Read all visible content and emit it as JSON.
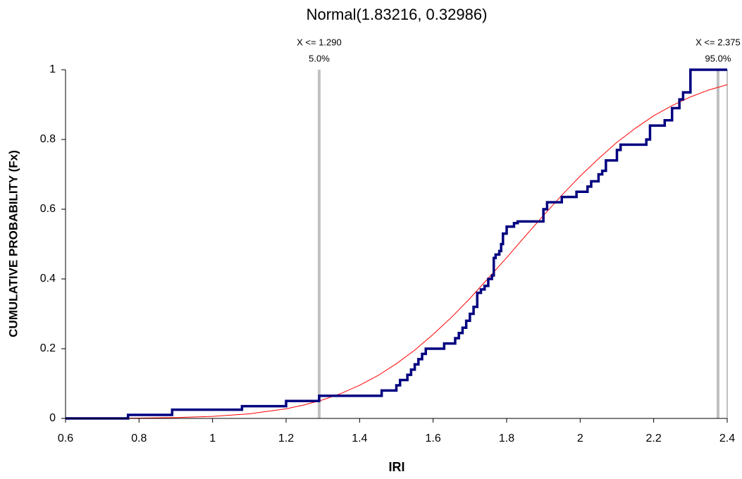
{
  "chart_data": {
    "type": "line",
    "title": "Normal(1.83216, 0.32986)",
    "x_label": "IRI",
    "y_label": "CUMULATIVE PROBABILITY (Fx)",
    "xlim": [
      0.6,
      2.4
    ],
    "ylim": [
      0,
      1
    ],
    "xticks": [
      0.6,
      0.8,
      1,
      1.2,
      1.4,
      1.6,
      1.8,
      2,
      2.2,
      2.4
    ],
    "yticks": [
      0,
      0.2,
      0.4,
      0.6,
      0.8,
      1
    ],
    "series": [
      {
        "color": "#000080",
        "width": 3.5,
        "x": [
          0.6,
          0.77,
          0.77,
          0.89,
          0.89,
          1.08,
          1.08,
          1.2,
          1.2,
          1.29,
          1.29,
          1.46,
          1.46,
          1.5,
          1.5,
          1.51,
          1.51,
          1.53,
          1.53,
          1.54,
          1.54,
          1.55,
          1.55,
          1.56,
          1.56,
          1.57,
          1.57,
          1.58,
          1.58,
          1.63,
          1.63,
          1.66,
          1.66,
          1.67,
          1.67,
          1.68,
          1.68,
          1.69,
          1.69,
          1.7,
          1.7,
          1.71,
          1.71,
          1.72,
          1.72,
          1.73,
          1.73,
          1.74,
          1.74,
          1.75,
          1.75,
          1.76,
          1.76,
          1.765,
          1.765,
          1.77,
          1.77,
          1.78,
          1.78,
          1.785,
          1.785,
          1.79,
          1.79,
          1.8,
          1.8,
          1.82,
          1.82,
          1.83,
          1.83,
          1.9,
          1.9,
          1.91,
          1.91,
          1.95,
          1.95,
          1.99,
          1.99,
          2.02,
          2.02,
          2.03,
          2.03,
          2.05,
          2.05,
          2.06,
          2.06,
          2.07,
          2.07,
          2.1,
          2.1,
          2.11,
          2.11,
          2.18,
          2.18,
          2.19,
          2.19,
          2.23,
          2.23,
          2.25,
          2.25,
          2.27,
          2.27,
          2.28,
          2.28,
          2.3,
          2.3,
          2.4
        ],
        "values": [
          0,
          0,
          0.01,
          0.01,
          0.025,
          0.025,
          0.035,
          0.035,
          0.05,
          0.05,
          0.065,
          0.065,
          0.08,
          0.08,
          0.095,
          0.095,
          0.11,
          0.11,
          0.125,
          0.125,
          0.14,
          0.14,
          0.155,
          0.155,
          0.17,
          0.17,
          0.185,
          0.185,
          0.2,
          0.2,
          0.215,
          0.215,
          0.23,
          0.23,
          0.245,
          0.245,
          0.26,
          0.26,
          0.28,
          0.28,
          0.3,
          0.3,
          0.32,
          0.32,
          0.36,
          0.36,
          0.37,
          0.37,
          0.38,
          0.38,
          0.4,
          0.4,
          0.41,
          0.41,
          0.46,
          0.46,
          0.47,
          0.47,
          0.48,
          0.48,
          0.5,
          0.5,
          0.53,
          0.53,
          0.55,
          0.55,
          0.56,
          0.56,
          0.565,
          0.565,
          0.6,
          0.6,
          0.62,
          0.62,
          0.635,
          0.635,
          0.65,
          0.65,
          0.665,
          0.665,
          0.68,
          0.68,
          0.7,
          0.7,
          0.71,
          0.71,
          0.74,
          0.74,
          0.77,
          0.77,
          0.785,
          0.785,
          0.8,
          0.8,
          0.84,
          0.84,
          0.855,
          0.855,
          0.89,
          0.89,
          0.915,
          0.915,
          0.935,
          0.935,
          1,
          1
        ]
      },
      {
        "color": "#ff0000",
        "width": 1,
        "x": [
          0.6,
          0.7,
          0.8,
          0.9,
          1,
          1.1,
          1.2,
          1.25,
          1.3,
          1.35,
          1.4,
          1.45,
          1.5,
          1.55,
          1.6,
          1.65,
          1.7,
          1.75,
          1.8,
          1.85,
          1.9,
          1.95,
          2,
          2.05,
          2.1,
          2.15,
          2.2,
          2.25,
          2.3,
          2.35,
          2.4
        ],
        "values": [
          0.0001,
          0.0003,
          0.0009,
          0.0024,
          0.0058,
          0.0132,
          0.0276,
          0.0388,
          0.0533,
          0.0719,
          0.0951,
          0.123,
          0.157,
          0.196,
          0.241,
          0.29,
          0.344,
          0.402,
          0.461,
          0.522,
          0.582,
          0.64,
          0.695,
          0.745,
          0.792,
          0.832,
          0.868,
          0.897,
          0.922,
          0.942,
          0.957
        ]
      }
    ],
    "markers": [
      {
        "x": 1.29,
        "label": "X <= 1.290",
        "p_label": "5.0%"
      },
      {
        "x": 2.375,
        "label": "X <= 2.375",
        "p_label": "95.0%"
      }
    ],
    "marker_color": "#c0c0c0"
  }
}
